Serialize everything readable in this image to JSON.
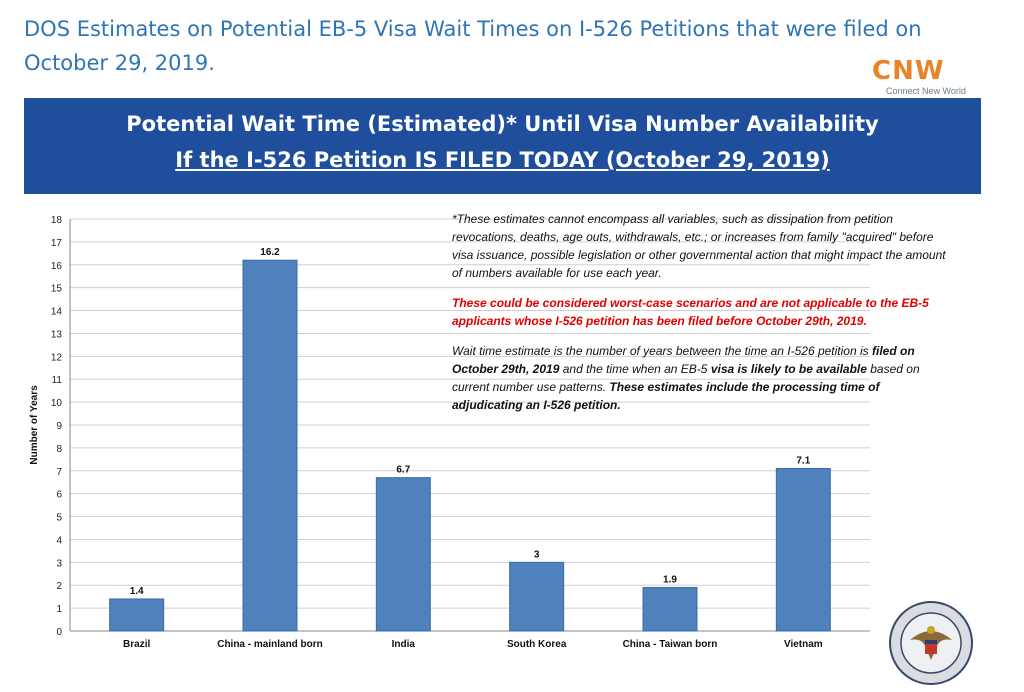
{
  "page": {
    "title": "DOS Estimates on Potential EB-5 Visa Wait Times on I-526 Petitions that were filed on October 29, 2019."
  },
  "logo": {
    "mark": "CNW",
    "tagline": "Connect New World"
  },
  "banner": {
    "line1": "Potential Wait Time (Estimated)* Until Visa Number Availability",
    "line2": "If the I-526 Petition IS FILED TODAY (October 29, 2019)"
  },
  "notes": {
    "p1": "*These estimates cannot encompass all variables, such as dissipation from petition revocations, deaths, age outs, withdrawals, etc.; or increases from family \"acquired\" before visa issuance, possible legislation or other governmental action that might impact the amount of numbers available for use each year.",
    "p2": "These could be considered worst-case scenarios and are not applicable to the EB-5 applicants whose I-526 petition has been filed before October 29th, 2019.",
    "p3_a": "Wait time estimate is the number of years between the time an I-526 petition is ",
    "p3_b": "filed on October 29th, 2019",
    "p3_c": " and the time when an EB-5 ",
    "p3_d": "visa is likely to be available",
    "p3_e": " based on current number use patterns. ",
    "p3_f": "These estimates include the processing time of adjudicating an I-526 petition."
  },
  "colors": {
    "bar": "#4f81bd",
    "banner": "#1f4e9c",
    "title": "#2e75b6",
    "warning": "#e00000"
  },
  "chart_data": {
    "type": "bar",
    "categories": [
      "Brazil",
      "China - mainland born",
      "India",
      "South Korea",
      "China - Taiwan born",
      "Vietnam"
    ],
    "values": [
      1.4,
      16.2,
      6.7,
      3,
      1.9,
      7.1
    ],
    "value_labels": [
      "1.4",
      "16.2",
      "6.7",
      "3",
      "1.9",
      "7.1"
    ],
    "ylabel": "Number of Years",
    "yticks": [
      0,
      1,
      2,
      3,
      4,
      5,
      6,
      7,
      8,
      9,
      10,
      11,
      12,
      13,
      14,
      15,
      16,
      17,
      18
    ],
    "ylim": [
      0,
      18
    ],
    "grid": true
  }
}
